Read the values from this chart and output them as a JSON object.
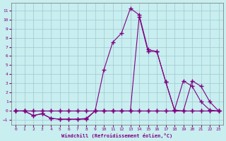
{
  "xlabel": "Windchill (Refroidissement éolien,°C)",
  "bg_color": "#c8eef0",
  "line_color": "#800080",
  "grid_color": "#a0c8d0",
  "tick_color": "#800080",
  "xlim": [
    -0.5,
    23.5
  ],
  "ylim": [
    -1.5,
    11.8
  ],
  "xticks": [
    0,
    1,
    2,
    3,
    4,
    5,
    6,
    7,
    8,
    9,
    10,
    11,
    12,
    13,
    14,
    15,
    16,
    17,
    18,
    19,
    20,
    21,
    22,
    23
  ],
  "yticks": [
    -1,
    0,
    1,
    2,
    3,
    4,
    5,
    6,
    7,
    8,
    9,
    10,
    11
  ],
  "line1_x": [
    0,
    1,
    2,
    3,
    4,
    5,
    6,
    7,
    8,
    9,
    10,
    11,
    12,
    13,
    14,
    15,
    16,
    17,
    18,
    19,
    20,
    21,
    22,
    23
  ],
  "line1_y": [
    0,
    0,
    -0.5,
    -0.3,
    -0.8,
    -0.9,
    -0.9,
    -0.9,
    -0.9,
    0.0,
    4.5,
    7.5,
    8.5,
    11.2,
    10.5,
    6.7,
    6.5,
    3.2,
    0.1,
    0.0,
    0.0,
    0.0,
    0.0,
    0.0
  ],
  "line2_x": [
    0,
    1,
    2,
    3,
    4,
    5,
    6,
    7,
    8,
    9,
    10,
    11,
    12,
    13,
    14,
    15,
    16,
    17,
    18,
    19,
    20,
    21,
    22,
    23
  ],
  "line2_y": [
    0,
    0,
    -0.5,
    -0.3,
    -0.8,
    -0.9,
    -0.9,
    -0.9,
    -0.8,
    0.0,
    0.0,
    0.0,
    0.0,
    0.0,
    10.3,
    6.5,
    6.5,
    3.2,
    0.1,
    3.3,
    2.7,
    1.0,
    0.1,
    0.0
  ],
  "line3_x": [
    0,
    1,
    2,
    3,
    4,
    5,
    6,
    7,
    8,
    9,
    10,
    11,
    12,
    13,
    14,
    15,
    16,
    17,
    18,
    19,
    20,
    21,
    22,
    23
  ],
  "line3_y": [
    0,
    0,
    0,
    0,
    0,
    0,
    0,
    0,
    0,
    0,
    0,
    0,
    0,
    0,
    0,
    0,
    0,
    0,
    0,
    0,
    3.3,
    2.7,
    1.0,
    0.0
  ],
  "line4_x": [
    0,
    1,
    2,
    3,
    4,
    5,
    6,
    7,
    8,
    9,
    10,
    11,
    12,
    13,
    14,
    15,
    16,
    17,
    18,
    19,
    20,
    21,
    22,
    23
  ],
  "line4_y": [
    0,
    0,
    0,
    0,
    0,
    0,
    0,
    0,
    0,
    0,
    0,
    0,
    0,
    0,
    0,
    0,
    0,
    0,
    0,
    0,
    0,
    0,
    0,
    0
  ]
}
